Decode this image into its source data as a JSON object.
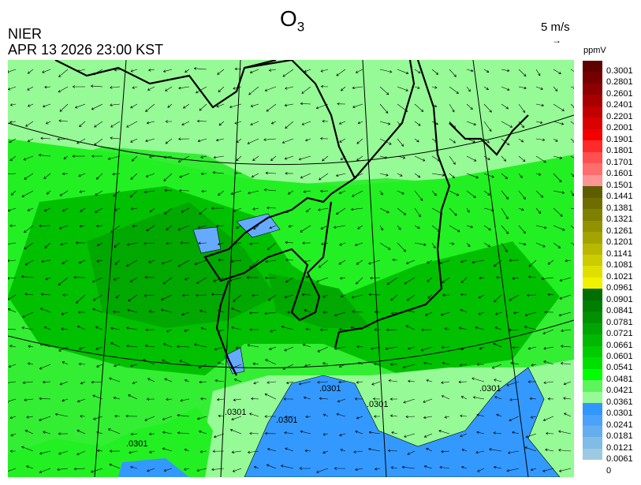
{
  "header": {
    "title_main": "O",
    "title_sub": "3",
    "organization": "NIER",
    "timestamp": "APR 13 2026 23:00 KST",
    "vector_scale": "5 m/s",
    "unit": "ppmV"
  },
  "legend": {
    "labels": [
      "0.3001",
      "0.2801",
      "0.2601",
      "0.2401",
      "0.2201",
      "0.2001",
      "0.1901",
      "0.1801",
      "0.1701",
      "0.1601",
      "0.1501",
      "0.1441",
      "0.1381",
      "0.1321",
      "0.1261",
      "0.1201",
      "0.1141",
      "0.1081",
      "0.1021",
      "0.0961",
      "0.0901",
      "0.0841",
      "0.0781",
      "0.0721",
      "0.0661",
      "0.0601",
      "0.0541",
      "0.0481",
      "0.0421",
      "0.0361",
      "0.0301",
      "0.0241",
      "0.0181",
      "0.0121",
      "0.0061",
      "0"
    ],
    "colors": [
      "#5e0000",
      "#760000",
      "#8e0000",
      "#a80000",
      "#c20000",
      "#da0000",
      "#f20000",
      "#ff2a2a",
      "#ff5050",
      "#ff6e6e",
      "#ff9494",
      "#5e5e00",
      "#6e6e00",
      "#808000",
      "#929200",
      "#a4a400",
      "#b8b800",
      "#cccc00",
      "#e0e000",
      "#f2f200",
      "#006e00",
      "#007e00",
      "#009000",
      "#00a400",
      "#00b800",
      "#00cc00",
      "#00e000",
      "#00ff00",
      "#5cf55c",
      "#96fa96",
      "#3296ff",
      "#4aa2fa",
      "#64aef0",
      "#80bce6",
      "#9ccae0"
    ]
  },
  "map": {
    "colors": {
      "background": "#33ee33",
      "light": "#96fa96",
      "dark": "#00c000",
      "darker": "#00a800",
      "ocean": "#3399ff"
    },
    "contour_labels": [
      ".0301",
      ".0301",
      ".0301",
      ".0301",
      ".0301",
      ".0301"
    ]
  }
}
